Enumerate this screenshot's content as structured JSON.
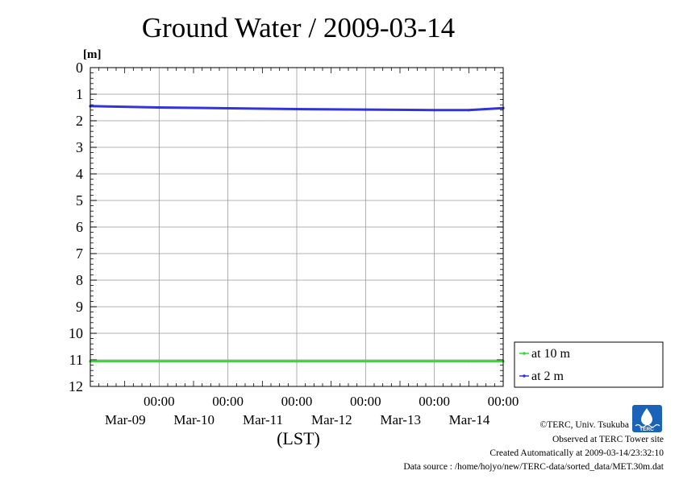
{
  "chart_data": {
    "type": "line",
    "title": "Ground Water / 2009-03-14",
    "ylabel": "[m]",
    "xlabel": "(LST)",
    "ylim": [
      0,
      12
    ],
    "y_inverted": true,
    "y_ticks": [
      "0",
      "1",
      "2",
      "3",
      "4",
      "5",
      "6",
      "7",
      "8",
      "9",
      "10",
      "11",
      "12"
    ],
    "x_ticks": [
      {
        "time": "00:00",
        "date": "Mar-09"
      },
      {
        "time": "00:00",
        "date": "Mar-10"
      },
      {
        "time": "00:00",
        "date": "Mar-11"
      },
      {
        "time": "00:00",
        "date": "Mar-12"
      },
      {
        "time": "00:00",
        "date": "Mar-13"
      },
      {
        "time": "00:00",
        "date": "Mar-14"
      }
    ],
    "x": [
      "2009-03-08 00:00",
      "2009-03-09 00:00",
      "2009-03-10 00:00",
      "2009-03-11 00:00",
      "2009-03-12 00:00",
      "2009-03-13 00:00",
      "2009-03-13 12:00",
      "2009-03-14 00:00"
    ],
    "xlim": [
      "2009-03-08 00:00",
      "2009-03-14 00:00"
    ],
    "grid": true,
    "legend_position": "right",
    "series": [
      {
        "name": "at 10 m",
        "color": "#33dd33",
        "values": [
          11.05,
          11.05,
          11.05,
          11.05,
          11.05,
          11.05,
          11.05,
          11.05
        ]
      },
      {
        "name": "at 2 m",
        "color": "#3333dd",
        "values": [
          1.45,
          1.5,
          1.53,
          1.56,
          1.58,
          1.6,
          1.6,
          1.52
        ]
      }
    ]
  },
  "credits": {
    "copyright": "©TERC, Univ. Tsukuba",
    "observed": "Observed at TERC Tower site",
    "created": "Created Automatically at 2009-03-14/23:32:10",
    "source": "Data source : /home/hojyo/new/TERC-data/sorted_data/MET.30m.dat"
  },
  "logo": {
    "text": "TERC",
    "color": "#1a63b8"
  }
}
